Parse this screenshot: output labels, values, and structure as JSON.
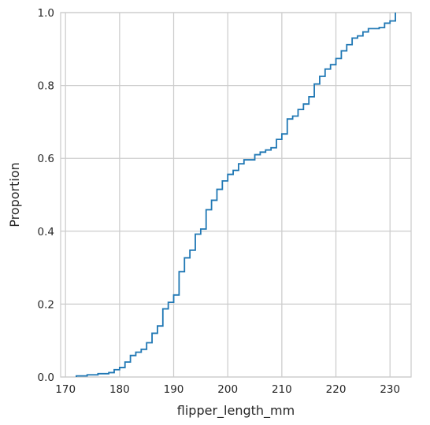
{
  "chart_data": {
    "type": "line",
    "drawstyle": "steps-post",
    "xlabel": "flipper_length_mm",
    "ylabel": "Proportion",
    "xlim": [
      169.1,
      233.9
    ],
    "ylim": [
      0,
      1
    ],
    "xticks": [
      170,
      180,
      190,
      200,
      210,
      220,
      230
    ],
    "yticks": [
      0.0,
      0.2,
      0.4,
      0.6,
      0.8,
      1.0
    ],
    "xtick_labels": [
      "170",
      "180",
      "190",
      "200",
      "210",
      "220",
      "230"
    ],
    "ytick_labels": [
      "0.0",
      "0.2",
      "0.4",
      "0.6",
      "0.8",
      "1.0"
    ],
    "grid": true,
    "series": [
      {
        "color": "#1f77b4",
        "x": [
          172,
          174,
          176,
          178,
          179,
          180,
          181,
          182,
          183,
          184,
          185,
          186,
          187,
          188,
          189,
          190,
          191,
          192,
          193,
          194,
          195,
          196,
          197,
          198,
          199,
          200,
          201,
          202,
          203,
          205,
          206,
          207,
          208,
          209,
          210,
          211,
          212,
          213,
          214,
          215,
          216,
          217,
          218,
          219,
          220,
          221,
          222,
          223,
          224,
          225,
          226,
          228,
          229,
          230,
          231
        ],
        "y": [
          0.003,
          0.006,
          0.009,
          0.012,
          0.02,
          0.026,
          0.041,
          0.059,
          0.068,
          0.076,
          0.094,
          0.12,
          0.14,
          0.187,
          0.205,
          0.225,
          0.289,
          0.327,
          0.348,
          0.392,
          0.406,
          0.459,
          0.485,
          0.515,
          0.538,
          0.556,
          0.567,
          0.585,
          0.596,
          0.61,
          0.617,
          0.623,
          0.629,
          0.652,
          0.667,
          0.708,
          0.716,
          0.734,
          0.749,
          0.769,
          0.804,
          0.825,
          0.845,
          0.857,
          0.874,
          0.895,
          0.912,
          0.93,
          0.936,
          0.947,
          0.956,
          0.959,
          0.971,
          0.977,
          1.0
        ]
      }
    ]
  }
}
